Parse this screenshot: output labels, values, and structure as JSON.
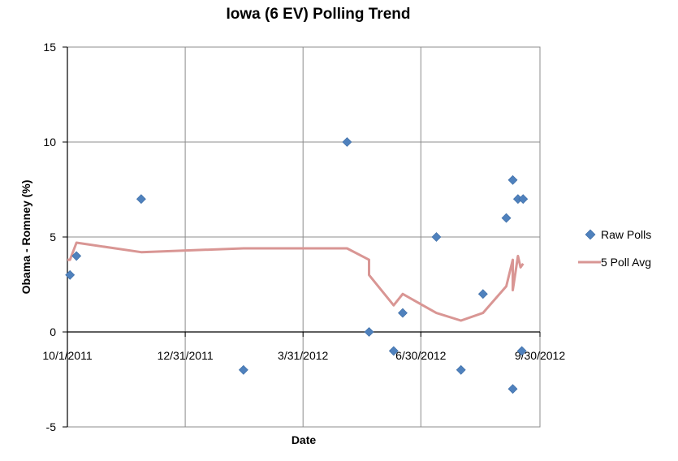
{
  "chart_data": {
    "type": "scatter",
    "title": "Iowa (6 EV) Polling Trend",
    "xlabel": "Date",
    "ylabel": "Obama - Romney (%)",
    "xlim": [
      "2011-10-01",
      "2012-09-30"
    ],
    "ylim": [
      -5,
      15
    ],
    "x_ticks": [
      {
        "date": "2011-10-01",
        "label": "10/1/2011"
      },
      {
        "date": "2011-12-31",
        "label": "12/31/2011"
      },
      {
        "date": "2012-03-31",
        "label": "3/31/2012"
      },
      {
        "date": "2012-06-30",
        "label": "6/30/2012"
      },
      {
        "date": "2012-09-30",
        "label": "9/30/2012"
      }
    ],
    "y_ticks": [
      -5,
      0,
      5,
      10,
      15
    ],
    "grid": true,
    "legend_position": "right",
    "series": [
      {
        "name": "Raw Polls",
        "type": "scatter",
        "color": "#4f81bd",
        "marker": "diamond",
        "points": [
          {
            "x": "2011-10-03",
            "y": 3
          },
          {
            "x": "2011-10-08",
            "y": 4
          },
          {
            "x": "2011-11-27",
            "y": 7
          },
          {
            "x": "2012-02-14",
            "y": -2
          },
          {
            "x": "2012-05-04",
            "y": 10
          },
          {
            "x": "2012-05-21",
            "y": 0
          },
          {
            "x": "2012-06-09",
            "y": -1
          },
          {
            "x": "2012-06-16",
            "y": 1
          },
          {
            "x": "2012-07-12",
            "y": 5
          },
          {
            "x": "2012-07-31",
            "y": -2
          },
          {
            "x": "2012-08-17",
            "y": 2
          },
          {
            "x": "2012-09-04",
            "y": 6
          },
          {
            "x": "2012-09-09",
            "y": 8
          },
          {
            "x": "2012-09-09",
            "y": -3
          },
          {
            "x": "2012-09-13",
            "y": 7
          },
          {
            "x": "2012-09-17",
            "y": 7
          },
          {
            "x": "2012-09-16",
            "y": -1
          }
        ]
      },
      {
        "name": "5 Poll Avg",
        "type": "line",
        "color": "#d99694",
        "points": [
          {
            "x": "2011-10-01",
            "y": 3.8
          },
          {
            "x": "2011-10-03",
            "y": 3.8
          },
          {
            "x": "2011-10-08",
            "y": 4.7
          },
          {
            "x": "2011-11-27",
            "y": 4.2
          },
          {
            "x": "2012-02-14",
            "y": 4.4
          },
          {
            "x": "2012-05-04",
            "y": 4.4
          },
          {
            "x": "2012-05-21",
            "y": 3.8
          },
          {
            "x": "2012-05-21",
            "y": 3.0
          },
          {
            "x": "2012-06-09",
            "y": 1.4
          },
          {
            "x": "2012-06-16",
            "y": 2.0
          },
          {
            "x": "2012-07-12",
            "y": 1.0
          },
          {
            "x": "2012-07-31",
            "y": 0.6
          },
          {
            "x": "2012-08-17",
            "y": 1.0
          },
          {
            "x": "2012-09-04",
            "y": 2.4
          },
          {
            "x": "2012-09-09",
            "y": 3.8
          },
          {
            "x": "2012-09-09",
            "y": 2.2
          },
          {
            "x": "2012-09-13",
            "y": 4.0
          },
          {
            "x": "2012-09-15",
            "y": 3.4
          },
          {
            "x": "2012-09-17",
            "y": 3.6
          }
        ]
      }
    ]
  }
}
